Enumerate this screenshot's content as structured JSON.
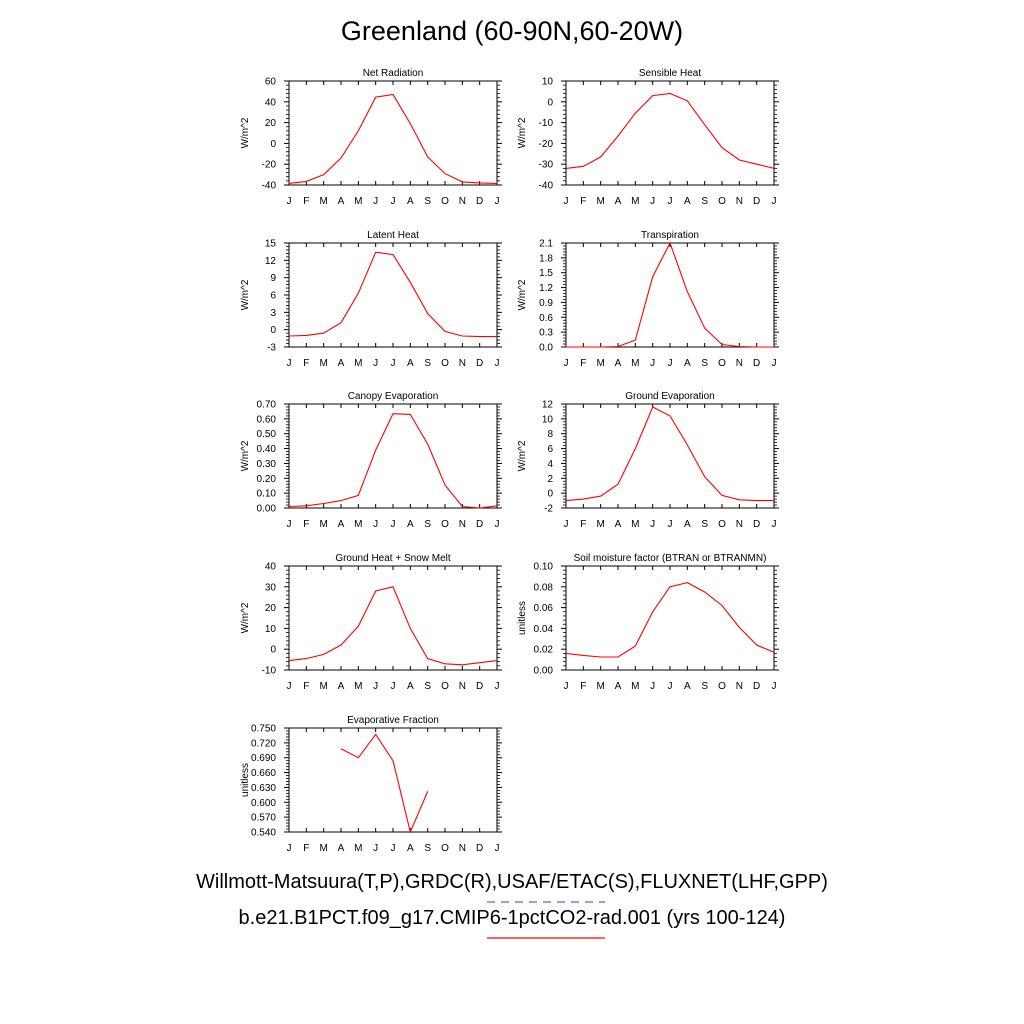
{
  "page": {
    "title": "Greenland (60-90N,60-20W)",
    "caption_obs": "Willmott-Matsuura(T,P),GRDC(R),USAF/ETAC(S),FLUXNET(LHF,GPP)",
    "caption_case": "b.e21.B1PCT.f09_g17.CMIP6-1pctCO2-rad.001 (yrs 100-124)",
    "obs_line_color": "#5b5bff",
    "case_line_color": "#ff0000"
  },
  "chart_data": [
    {
      "type": "line",
      "title": "Net Radiation",
      "ylabel": "W/m^2",
      "categories": [
        "J",
        "F",
        "M",
        "A",
        "M",
        "J",
        "J",
        "A",
        "S",
        "O",
        "N",
        "D",
        "J"
      ],
      "ylim": [
        -40,
        60
      ],
      "yticks": [
        "-40",
        "-20",
        "0",
        "20",
        "40",
        "60"
      ],
      "series": [
        {
          "color": "#ff0000",
          "values": [
            -38.5,
            -36.5,
            -30,
            -14,
            12,
            44.5,
            47,
            19,
            -13,
            -29,
            -37,
            -38,
            -38.5
          ]
        }
      ]
    },
    {
      "type": "line",
      "title": "Sensible Heat",
      "ylabel": "W/m^2",
      "categories": [
        "J",
        "F",
        "M",
        "A",
        "M",
        "J",
        "J",
        "A",
        "S",
        "O",
        "N",
        "D",
        "J"
      ],
      "ylim": [
        -40,
        10
      ],
      "yticks": [
        "-40",
        "-30",
        "-20",
        "-10",
        "0",
        "10"
      ],
      "series": [
        {
          "color": "#ff0000",
          "values": [
            -32,
            -31,
            -26.5,
            -16.5,
            -5.5,
            3,
            4,
            0.5,
            -11,
            -22,
            -28,
            -30,
            -32
          ]
        }
      ]
    },
    {
      "type": "line",
      "title": "Latent Heat",
      "ylabel": "W/m^2",
      "categories": [
        "J",
        "F",
        "M",
        "A",
        "M",
        "J",
        "J",
        "A",
        "S",
        "O",
        "N",
        "D",
        "J"
      ],
      "ylim": [
        -3,
        15
      ],
      "yticks": [
        "-3",
        "0",
        "3",
        "6",
        "9",
        "12",
        "15"
      ],
      "series": [
        {
          "color": "#ff0000",
          "values": [
            -1.1,
            -1,
            -0.6,
            1.2,
            6.3,
            13.4,
            13,
            8.2,
            2.8,
            -0.3,
            -1.1,
            -1.2,
            -1.2
          ]
        }
      ]
    },
    {
      "type": "line",
      "title": "Transpiration",
      "ylabel": "W/m^2",
      "categories": [
        "J",
        "F",
        "M",
        "A",
        "M",
        "J",
        "J",
        "A",
        "S",
        "O",
        "N",
        "D",
        "J"
      ],
      "ylim": [
        0,
        2.1
      ],
      "yticks": [
        "0.0",
        "0.3",
        "0.6",
        "0.9",
        "1.2",
        "1.5",
        "1.8",
        "2.1"
      ],
      "series": [
        {
          "color": "#ff0000",
          "values": [
            0,
            0,
            0,
            0.01,
            0.14,
            1.42,
            2.1,
            1.12,
            0.38,
            0.05,
            0.01,
            0,
            0
          ]
        }
      ]
    },
    {
      "type": "line",
      "title": "Canopy Evaporation",
      "ylabel": "W/m^2",
      "categories": [
        "J",
        "F",
        "M",
        "A",
        "M",
        "J",
        "J",
        "A",
        "S",
        "O",
        "N",
        "D",
        "J"
      ],
      "ylim": [
        0,
        0.7
      ],
      "yticks": [
        "0.00",
        "0.10",
        "0.20",
        "0.30",
        "0.40",
        "0.50",
        "0.60",
        "0.70"
      ],
      "series": [
        {
          "color": "#ff0000",
          "values": [
            0.01,
            0.015,
            0.03,
            0.05,
            0.085,
            0.39,
            0.635,
            0.63,
            0.43,
            0.155,
            0.01,
            0,
            0.015
          ]
        }
      ]
    },
    {
      "type": "line",
      "title": "Ground Evaporation",
      "ylabel": "W/m^2",
      "categories": [
        "J",
        "F",
        "M",
        "A",
        "M",
        "J",
        "J",
        "A",
        "S",
        "O",
        "N",
        "D",
        "J"
      ],
      "ylim": [
        -2,
        12
      ],
      "yticks": [
        "-2",
        "0",
        "2",
        "4",
        "6",
        "8",
        "10",
        "12"
      ],
      "series": [
        {
          "color": "#ff0000",
          "values": [
            -1,
            -0.8,
            -0.4,
            1.2,
            6,
            11.6,
            10.4,
            6.5,
            2.2,
            -0.3,
            -0.9,
            -1,
            -1
          ]
        }
      ]
    },
    {
      "type": "line",
      "title": "Ground Heat + Snow Melt",
      "ylabel": "W/m^2",
      "categories": [
        "J",
        "F",
        "M",
        "A",
        "M",
        "J",
        "J",
        "A",
        "S",
        "O",
        "N",
        "D",
        "J"
      ],
      "ylim": [
        -10,
        40
      ],
      "yticks": [
        "-10",
        "0",
        "10",
        "20",
        "30",
        "40"
      ],
      "series": [
        {
          "color": "#ff0000",
          "values": [
            -5.5,
            -4.5,
            -2.5,
            2,
            11,
            28,
            30,
            10,
            -4.5,
            -7,
            -7.5,
            -6.5,
            -5.5
          ]
        }
      ]
    },
    {
      "type": "line",
      "title": "Soil moisture factor (BTRAN or BTRANMN)",
      "ylabel": "unitless",
      "categories": [
        "J",
        "F",
        "M",
        "A",
        "M",
        "J",
        "J",
        "A",
        "S",
        "O",
        "N",
        "D",
        "J"
      ],
      "ylim": [
        0,
        0.1
      ],
      "yticks": [
        "0.00",
        "0.02",
        "0.04",
        "0.06",
        "0.08",
        "0.10"
      ],
      "series": [
        {
          "color": "#ff0000",
          "values": [
            0.016,
            0.014,
            0.0125,
            0.0125,
            0.023,
            0.056,
            0.08,
            0.084,
            0.075,
            0.062,
            0.041,
            0.024,
            0.017
          ]
        }
      ]
    },
    {
      "type": "line",
      "title": "Evaporative Fraction",
      "ylabel": "unitless",
      "categories": [
        "J",
        "F",
        "M",
        "A",
        "M",
        "J",
        "J",
        "A",
        "S",
        "O",
        "N",
        "D",
        "J"
      ],
      "ylim": [
        0.54,
        0.75
      ],
      "yticks": [
        "0.540",
        "0.570",
        "0.600",
        "0.630",
        "0.660",
        "0.690",
        "0.720",
        "0.750"
      ],
      "series": [
        {
          "color": "#ff0000",
          "values": [
            null,
            null,
            null,
            0.708,
            0.69,
            0.737,
            0.684,
            0.54,
            0.622,
            null,
            null,
            null,
            null
          ]
        }
      ]
    }
  ]
}
